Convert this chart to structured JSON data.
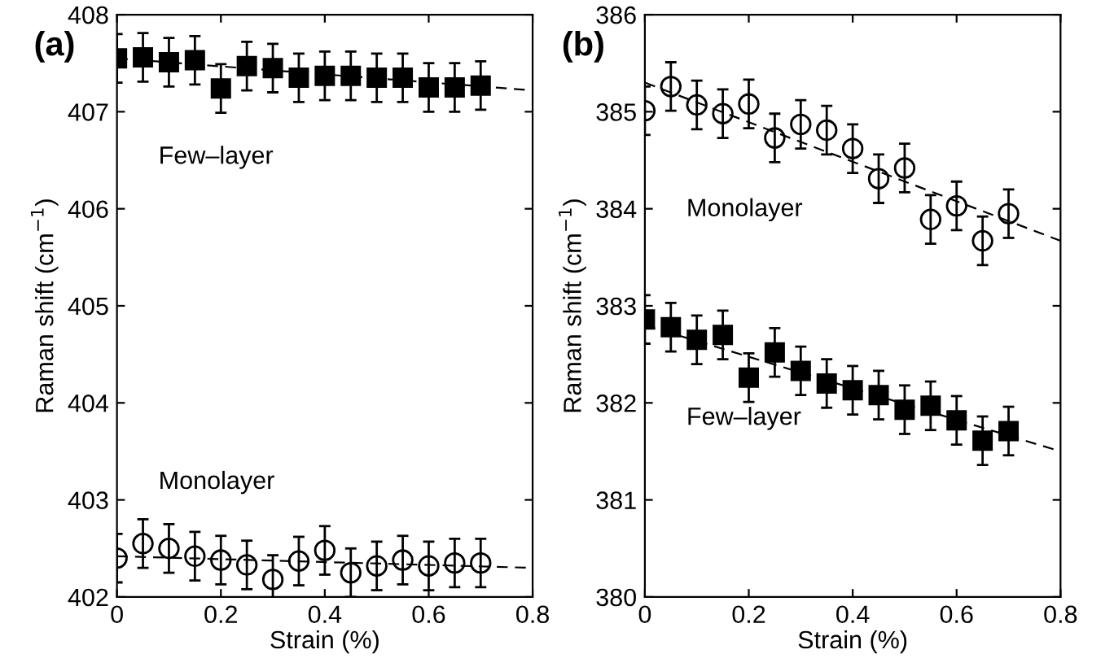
{
  "chart_data": [
    {
      "type": "scatter",
      "xlabel": "Strain (%)",
      "ylabel": "Raman shift (cm$^{−1}$)",
      "xlim": [
        0,
        0.8
      ],
      "ylim": [
        402,
        408
      ],
      "xticks": [
        0,
        0.2,
        0.4,
        0.6,
        0.8
      ],
      "yticks": [
        402,
        403,
        404,
        405,
        406,
        407,
        408
      ],
      "grid": false,
      "legend": false,
      "annotations": [
        "(a)"
      ],
      "series": [
        {
          "name": "Few–layer",
          "marker": "square",
          "color": "#000000",
          "x": [
            0,
            0.05,
            0.1,
            0.15,
            0.2,
            0.25,
            0.3,
            0.35,
            0.4,
            0.45,
            0.5,
            0.55,
            0.6,
            0.65,
            0.7
          ],
          "values": [
            407.55,
            407.56,
            407.51,
            407.53,
            407.24,
            407.47,
            407.45,
            407.35,
            407.37,
            407.37,
            407.35,
            407.35,
            407.25,
            407.25,
            407.27
          ],
          "errors": [
            0.25,
            0.25,
            0.25,
            0.25,
            0.25,
            0.25,
            0.25,
            0.25,
            0.25,
            0.25,
            0.25,
            0.25,
            0.25,
            0.25,
            0.25
          ]
        },
        {
          "name": "Monolayer",
          "marker": "circle",
          "color": "#000000",
          "x": [
            0,
            0.05,
            0.1,
            0.15,
            0.2,
            0.25,
            0.3,
            0.35,
            0.4,
            0.45,
            0.5,
            0.55,
            0.6,
            0.65,
            0.7
          ],
          "values": [
            402.4,
            402.55,
            402.5,
            402.42,
            402.38,
            402.33,
            402.18,
            402.37,
            402.48,
            402.25,
            402.32,
            402.38,
            402.32,
            402.35,
            402.35
          ],
          "errors": [
            0.25,
            0.25,
            0.25,
            0.25,
            0.25,
            0.25,
            0.25,
            0.25,
            0.25,
            0.25,
            0.25,
            0.25,
            0.25,
            0.25,
            0.25
          ]
        },
        {
          "type": "line",
          "line_style": "dashed",
          "color": "#000000",
          "x": [
            0,
            0.8
          ],
          "values": [
            407.55,
            407.22
          ]
        },
        {
          "type": "line",
          "line_style": "dashed",
          "color": "#000000",
          "x": [
            0,
            0.8
          ],
          "values": [
            402.42,
            402.3
          ]
        }
      ]
    },
    {
      "type": "scatter",
      "xlabel": "Strain (%)",
      "ylabel": "Raman shift (cm$^{−1}$)",
      "xlim": [
        0,
        0.8
      ],
      "ylim": [
        380,
        386
      ],
      "xticks": [
        0,
        0.2,
        0.4,
        0.6,
        0.8
      ],
      "yticks": [
        380,
        381,
        382,
        383,
        384,
        385,
        386
      ],
      "grid": false,
      "legend": false,
      "annotations": [
        "(b)"
      ],
      "series": [
        {
          "name": "Monolayer",
          "marker": "circle",
          "color": "#000000",
          "x": [
            0,
            0.05,
            0.1,
            0.15,
            0.2,
            0.25,
            0.3,
            0.35,
            0.4,
            0.45,
            0.5,
            0.55,
            0.6,
            0.65,
            0.7
          ],
          "values": [
            385.01,
            385.26,
            385.07,
            384.98,
            385.08,
            384.73,
            384.87,
            384.81,
            384.62,
            384.31,
            384.42,
            383.89,
            384.03,
            383.67,
            383.95
          ],
          "errors": [
            0.25,
            0.25,
            0.25,
            0.25,
            0.25,
            0.25,
            0.25,
            0.25,
            0.25,
            0.25,
            0.25,
            0.25,
            0.25,
            0.25,
            0.25
          ]
        },
        {
          "name": "Few–layer",
          "marker": "square",
          "color": "#000000",
          "x": [
            0,
            0.05,
            0.1,
            0.15,
            0.2,
            0.25,
            0.3,
            0.35,
            0.4,
            0.45,
            0.5,
            0.55,
            0.6,
            0.65,
            0.7
          ],
          "values": [
            382.86,
            382.78,
            382.65,
            382.7,
            382.26,
            382.52,
            382.33,
            382.2,
            382.13,
            382.08,
            381.93,
            381.97,
            381.82,
            381.61,
            381.71
          ],
          "errors": [
            0.25,
            0.25,
            0.25,
            0.25,
            0.25,
            0.25,
            0.25,
            0.25,
            0.25,
            0.25,
            0.25,
            0.25,
            0.25,
            0.25,
            0.25
          ]
        },
        {
          "type": "line",
          "line_style": "dashed",
          "color": "#000000",
          "x": [
            0,
            0.8
          ],
          "values": [
            385.3,
            383.67
          ]
        },
        {
          "type": "line",
          "line_style": "dashed",
          "color": "#000000",
          "x": [
            0,
            0.8
          ],
          "values": [
            382.8,
            381.5
          ]
        }
      ]
    }
  ]
}
